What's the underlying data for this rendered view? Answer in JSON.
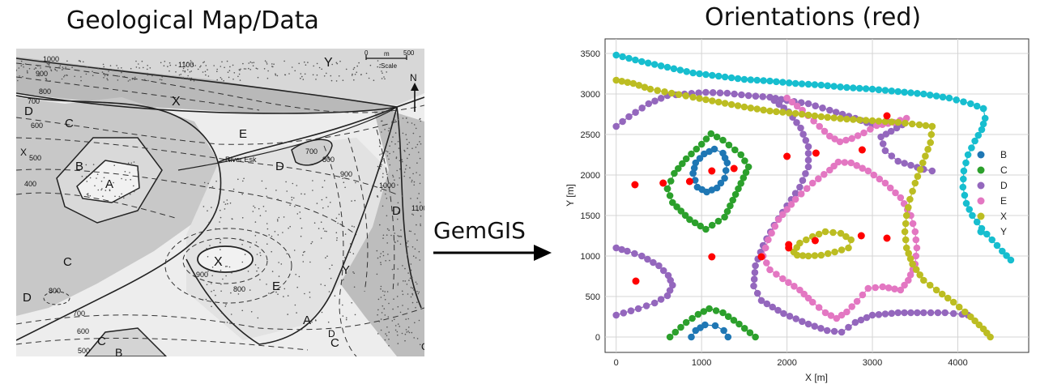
{
  "left_panel": {
    "title": "Geological Map/Data",
    "unit_labels": [
      "Y",
      "X",
      "E",
      "D",
      "C",
      "B",
      "A",
      "X",
      "E",
      "D",
      "C",
      "D",
      "C",
      "B",
      "A",
      "C",
      "D",
      "Y",
      "X",
      "D",
      "C"
    ],
    "contour_labels": [
      "1000",
      "900",
      "800",
      "700",
      "600",
      "500",
      "400",
      "1100",
      "700",
      "800",
      "900",
      "1000",
      "1100",
      "900",
      "800",
      "800",
      "700",
      "600",
      "500"
    ],
    "river_label": "River Esk",
    "scale": {
      "zero": "0",
      "unit": "m",
      "max": "500",
      "caption": "Scale"
    },
    "north": "N"
  },
  "arrow": {
    "label": "GemGIS"
  },
  "chart_data": {
    "type": "scatter",
    "title": "Orientations (red)",
    "xlabel": "X [m]",
    "ylabel": "Y [m]",
    "xlim": [
      -130,
      4830
    ],
    "ylim": [
      -190,
      3680
    ],
    "xticks": [
      0,
      1000,
      2000,
      3000,
      4000
    ],
    "yticks": [
      0,
      500,
      1000,
      1500,
      2000,
      2500,
      3000,
      3500
    ],
    "grid": true,
    "legend_position": "right",
    "series": [
      {
        "name": "B",
        "color": "#1f77b4",
        "paths": [
          [
            [
              900,
              2020
            ],
            [
              930,
              2150
            ],
            [
              1030,
              2260
            ],
            [
              1150,
              2320
            ],
            [
              1250,
              2270
            ],
            [
              1300,
              2150
            ],
            [
              1270,
              1960
            ],
            [
              1180,
              1840
            ],
            [
              1060,
              1790
            ],
            [
              950,
              1850
            ],
            [
              900,
              2020
            ]
          ],
          [
            [
              880,
              0
            ],
            [
              930,
              80
            ],
            [
              1040,
              150
            ],
            [
              1160,
              140
            ],
            [
              1260,
              80
            ],
            [
              1310,
              0
            ]
          ]
        ]
      },
      {
        "name": "C",
        "color": "#2ca02c",
        "paths": [
          [
            [
              600,
              1830
            ],
            [
              680,
              2020
            ],
            [
              820,
              2200
            ],
            [
              1000,
              2380
            ],
            [
              1110,
              2510
            ],
            [
              1250,
              2430
            ],
            [
              1460,
              2250
            ],
            [
              1550,
              2100
            ],
            [
              1430,
              1830
            ],
            [
              1270,
              1480
            ],
            [
              1050,
              1330
            ],
            [
              860,
              1450
            ],
            [
              660,
              1660
            ],
            [
              600,
              1830
            ]
          ],
          [
            [
              630,
              0
            ],
            [
              820,
              180
            ],
            [
              960,
              280
            ],
            [
              1090,
              350
            ],
            [
              1250,
              300
            ],
            [
              1440,
              160
            ],
            [
              1630,
              0
            ]
          ]
        ]
      },
      {
        "name": "D",
        "color": "#9467bd",
        "paths": [
          [
            [
              0,
              2600
            ],
            [
              150,
              2720
            ],
            [
              380,
              2880
            ],
            [
              600,
              2980
            ],
            [
              800,
              3000
            ],
            [
              1050,
              3020
            ],
            [
              1300,
              3010
            ],
            [
              1550,
              2980
            ],
            [
              1800,
              2960
            ],
            [
              2000,
              2920
            ],
            [
              2250,
              2880
            ],
            [
              2500,
              2800
            ],
            [
              2800,
              2700
            ],
            [
              3000,
              2620
            ],
            [
              3200,
              2650
            ],
            [
              3350,
              2620
            ]
          ],
          [
            [
              3350,
              2620
            ],
            [
              3220,
              2540
            ],
            [
              3100,
              2470
            ],
            [
              3150,
              2300
            ],
            [
              3300,
              2170
            ],
            [
              3450,
              2120
            ],
            [
              3600,
              2070
            ],
            [
              3700,
              2050
            ]
          ],
          [
            [
              1850,
              2920
            ],
            [
              2020,
              2780
            ],
            [
              2160,
              2580
            ],
            [
              2250,
              2350
            ],
            [
              2250,
              2100
            ],
            [
              2150,
              1850
            ],
            [
              2000,
              1620
            ],
            [
              1850,
              1380
            ],
            [
              1720,
              1130
            ],
            [
              1630,
              880
            ],
            [
              1610,
              630
            ],
            [
              1700,
              450
            ],
            [
              1960,
              290
            ],
            [
              2250,
              160
            ],
            [
              2470,
              80
            ],
            [
              2640,
              60
            ],
            [
              2800,
              180
            ],
            [
              3000,
              270
            ],
            [
              3300,
              300
            ],
            [
              3600,
              300
            ],
            [
              3850,
              300
            ],
            [
              4050,
              280
            ],
            [
              4120,
              270
            ]
          ],
          [
            [
              0,
              1100
            ],
            [
              130,
              1060
            ],
            [
              300,
              1000
            ],
            [
              500,
              880
            ],
            [
              610,
              760
            ],
            [
              660,
              640
            ],
            [
              600,
              510
            ],
            [
              450,
              420
            ],
            [
              260,
              350
            ],
            [
              0,
              270
            ]
          ]
        ]
      },
      {
        "name": "E",
        "color": "#e377c2",
        "paths": [
          [
            [
              2000,
              2950
            ],
            [
              2180,
              2800
            ],
            [
              2380,
              2600
            ],
            [
              2500,
              2480
            ],
            [
              2620,
              2410
            ],
            [
              2760,
              2450
            ],
            [
              2900,
              2520
            ],
            [
              3050,
              2610
            ],
            [
              3250,
              2650
            ],
            [
              3400,
              2700
            ]
          ],
          [
            [
              1720,
              1000
            ],
            [
              1780,
              1200
            ],
            [
              1900,
              1450
            ],
            [
              2100,
              1700
            ],
            [
              2300,
              1900
            ],
            [
              2500,
              2060
            ],
            [
              2600,
              2160
            ],
            [
              2750,
              2150
            ],
            [
              2950,
              2050
            ],
            [
              3150,
              1900
            ],
            [
              3330,
              1720
            ],
            [
              3450,
              1500
            ],
            [
              3500,
              1300
            ],
            [
              3520,
              1100
            ],
            [
              3500,
              900
            ],
            [
              3420,
              700
            ],
            [
              3330,
              580
            ],
            [
              3120,
              620
            ],
            [
              2950,
              600
            ],
            [
              2820,
              440
            ],
            [
              2700,
              310
            ],
            [
              2580,
              230
            ],
            [
              2450,
              300
            ],
            [
              2300,
              430
            ],
            [
              2150,
              580
            ],
            [
              1950,
              720
            ],
            [
              1800,
              830
            ],
            [
              1720,
              1000
            ]
          ]
        ]
      },
      {
        "name": "X",
        "color": "#bcbd22",
        "paths": [
          [
            [
              0,
              3170
            ],
            [
              200,
              3130
            ],
            [
              400,
              3060
            ],
            [
              650,
              3010
            ],
            [
              900,
              2960
            ],
            [
              1200,
              2900
            ],
            [
              1500,
              2840
            ],
            [
              1800,
              2790
            ],
            [
              2100,
              2760
            ],
            [
              2400,
              2720
            ],
            [
              2700,
              2690
            ],
            [
              3000,
              2670
            ],
            [
              3300,
              2650
            ],
            [
              3550,
              2620
            ],
            [
              3700,
              2600
            ]
          ],
          [
            [
              3700,
              2600
            ],
            [
              3680,
              2400
            ],
            [
              3590,
              2150
            ],
            [
              3500,
              1900
            ],
            [
              3440,
              1700
            ],
            [
              3400,
              1500
            ],
            [
              3380,
              1300
            ],
            [
              3400,
              1100
            ],
            [
              3470,
              900
            ],
            [
              3600,
              700
            ],
            [
              3750,
              580
            ],
            [
              3950,
              430
            ],
            [
              4150,
              250
            ],
            [
              4300,
              100
            ],
            [
              4380,
              0
            ]
          ],
          [
            [
              2080,
              1050
            ],
            [
              2150,
              1160
            ],
            [
              2300,
              1240
            ],
            [
              2450,
              1300
            ],
            [
              2630,
              1280
            ],
            [
              2750,
              1200
            ],
            [
              2720,
              1100
            ],
            [
              2560,
              1050
            ],
            [
              2400,
              1010
            ],
            [
              2250,
              1000
            ],
            [
              2120,
              1010
            ],
            [
              2080,
              1050
            ]
          ]
        ]
      },
      {
        "name": "Y",
        "color": "#17becf",
        "paths": [
          [
            [
              0,
              3480
            ],
            [
              300,
              3400
            ],
            [
              600,
              3330
            ],
            [
              900,
              3260
            ],
            [
              1200,
              3220
            ],
            [
              1500,
              3180
            ],
            [
              1800,
              3160
            ],
            [
              2100,
              3130
            ],
            [
              2400,
              3110
            ],
            [
              2700,
              3080
            ],
            [
              3000,
              3060
            ],
            [
              3300,
              3030
            ],
            [
              3600,
              3000
            ],
            [
              3900,
              2950
            ],
            [
              4150,
              2880
            ],
            [
              4300,
              2820
            ]
          ],
          [
            [
              4300,
              2820
            ],
            [
              4320,
              2700
            ],
            [
              4280,
              2560
            ],
            [
              4200,
              2420
            ],
            [
              4120,
              2250
            ],
            [
              4070,
              2050
            ],
            [
              4060,
              1850
            ],
            [
              4100,
              1650
            ],
            [
              4170,
              1500
            ],
            [
              4280,
              1340
            ],
            [
              4400,
              1200
            ],
            [
              4520,
              1060
            ],
            [
              4620,
              950
            ]
          ]
        ]
      },
      {
        "name": "",
        "color": "#ff0000",
        "points": [
          [
            220,
            1880
          ],
          [
            550,
            1900
          ],
          [
            860,
            1920
          ],
          [
            1120,
            2050
          ],
          [
            1380,
            2080
          ],
          [
            2000,
            2230
          ],
          [
            2340,
            2270
          ],
          [
            2880,
            2310
          ],
          [
            3170,
            2730
          ],
          [
            230,
            690
          ],
          [
            1120,
            990
          ],
          [
            1700,
            990
          ],
          [
            2020,
            1140
          ],
          [
            2020,
            1100
          ],
          [
            2330,
            1190
          ],
          [
            2870,
            1250
          ],
          [
            3170,
            1220
          ]
        ]
      }
    ]
  }
}
